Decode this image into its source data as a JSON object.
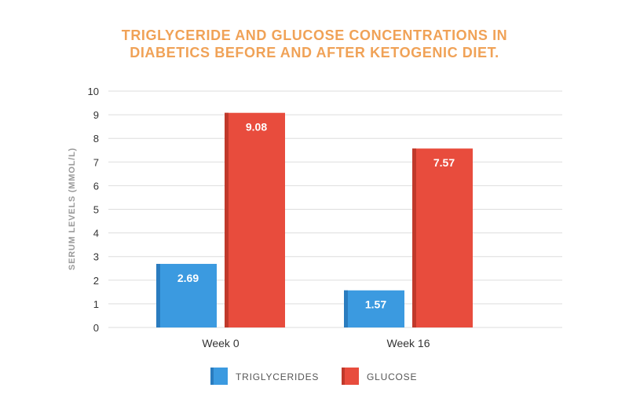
{
  "chart_data": {
    "type": "bar",
    "title_lines": [
      "TRIGLYCERIDE AND GLUCOSE CONCENTRATIONS IN",
      "DIABETICS BEFORE AND AFTER KETOGENIC DIET."
    ],
    "ylabel": "SERUM LEVELS (MMOL/L)",
    "xlabel": "",
    "categories": [
      "Week 0",
      "Week 16"
    ],
    "series": [
      {
        "name": "TRIGLYCERIDES",
        "values": [
          2.69,
          1.57
        ],
        "value_labels": [
          "2.69",
          "1.57"
        ],
        "color": "#3b9ae0",
        "shade": "#2a7cbf"
      },
      {
        "name": "GLUCOSE",
        "values": [
          9.08,
          7.57
        ],
        "value_labels": [
          "9.08",
          "7.57"
        ],
        "color": "#e84c3d",
        "shade": "#c0392b"
      }
    ],
    "ylim": [
      0,
      10
    ],
    "yticks": [
      0,
      1,
      2,
      3,
      4,
      5,
      6,
      7,
      8,
      9,
      10
    ],
    "grid": true,
    "legend_position": "bottom-center"
  }
}
